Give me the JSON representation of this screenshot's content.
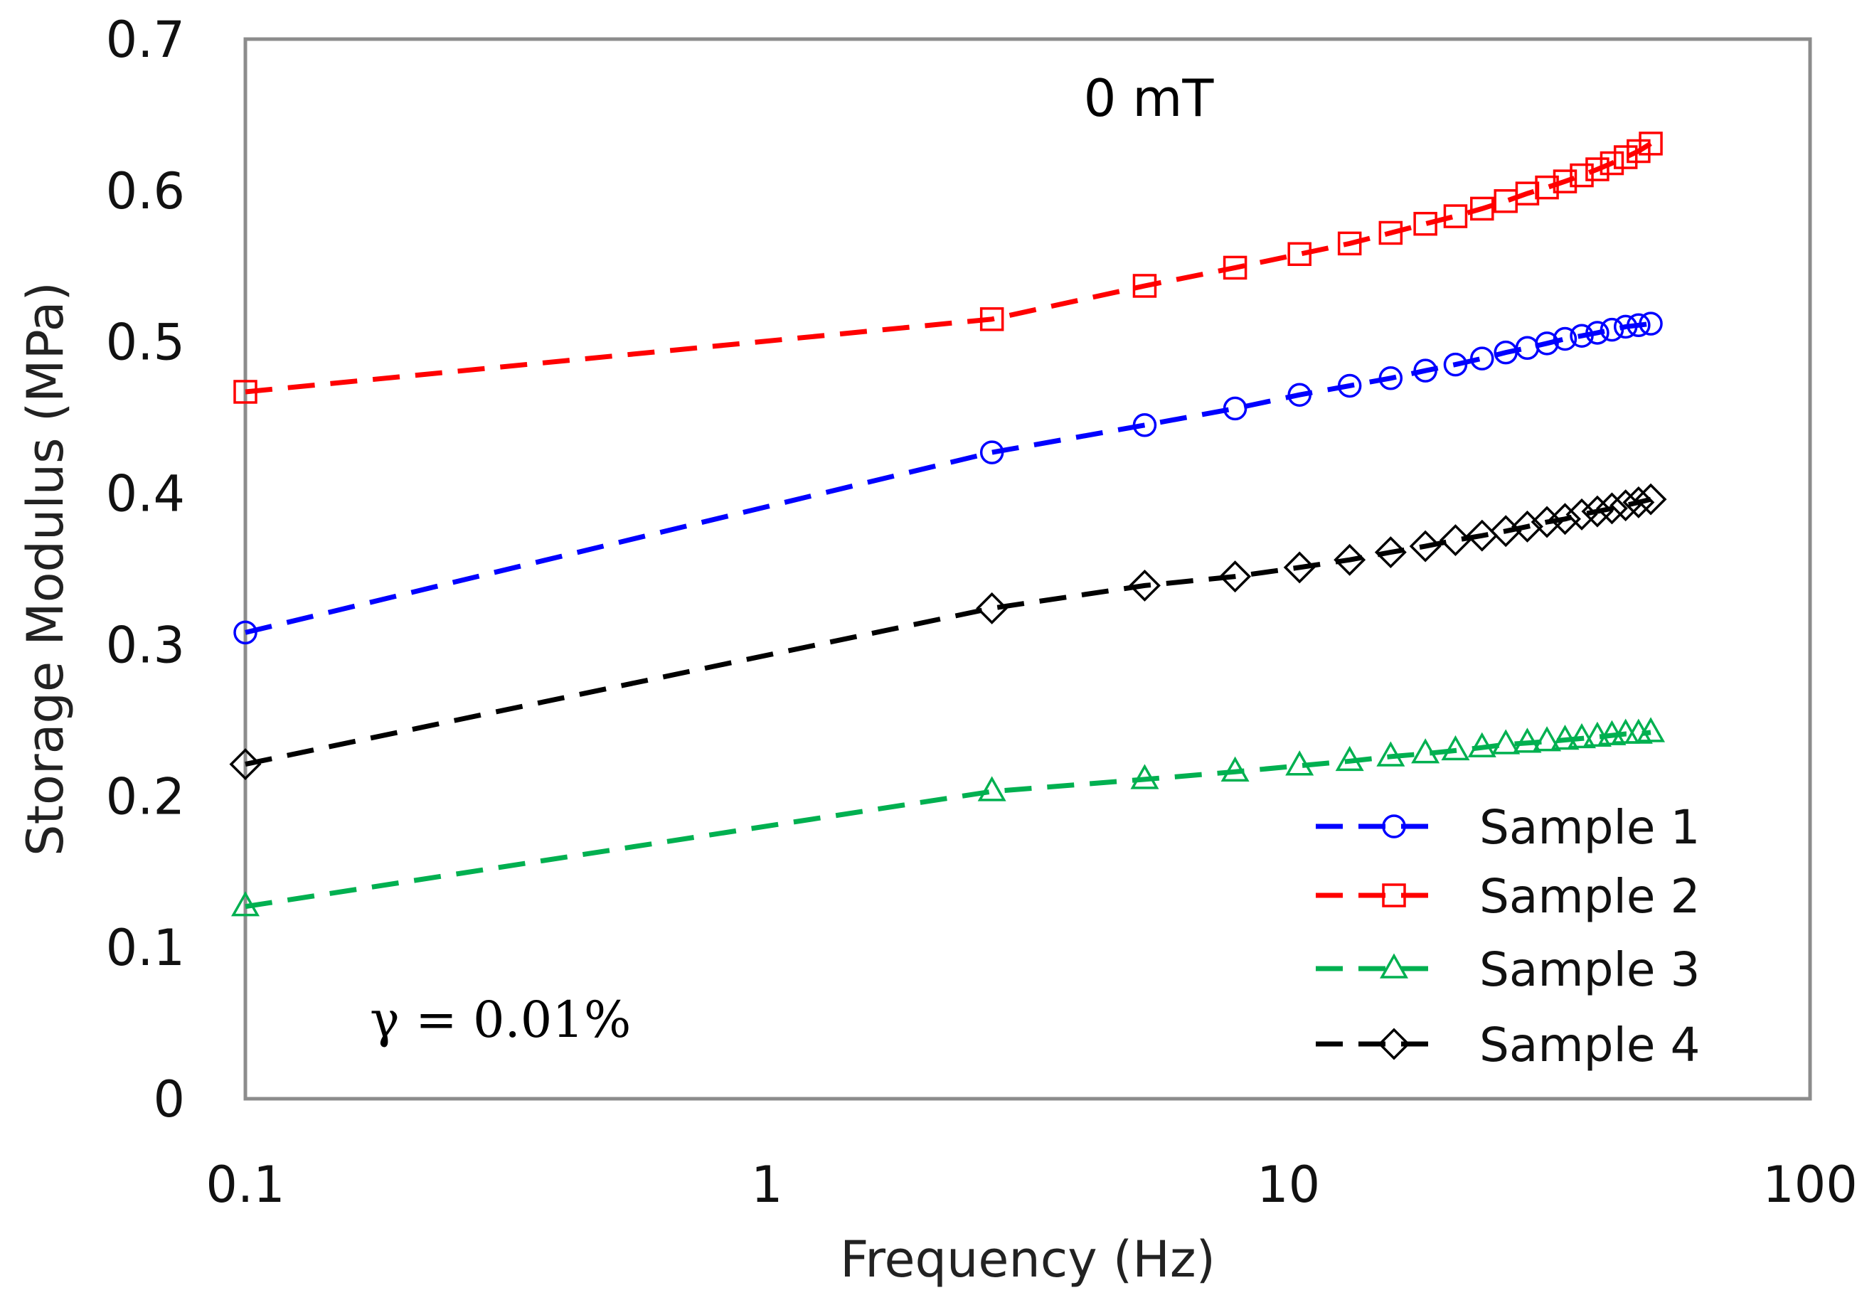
{
  "chart_data": {
    "type": "scatter",
    "title": "0 mT",
    "annotation": "γ = 0.01%",
    "xlabel": "Frequency (Hz)",
    "ylabel": "Storage Modulus (MPa)",
    "xscale": "log",
    "xlim": [
      0.1,
      100
    ],
    "ylim": [
      0,
      0.7
    ],
    "xticks": [
      0.1,
      1,
      10,
      100
    ],
    "xtick_labels": [
      "0.1",
      "1",
      "10",
      "100"
    ],
    "yticks": [
      0,
      0.1,
      0.2,
      0.3,
      0.4,
      0.5,
      0.6,
      0.7
    ],
    "ytick_labels": [
      "0",
      "0.1",
      "0.2",
      "0.3",
      "0.4",
      "0.5",
      "0.6",
      "0.7"
    ],
    "grid": false,
    "legend_position": "bottom-right",
    "line_style": "dashed",
    "x": [
      0.1,
      2.7,
      5.3,
      7.9,
      10.5,
      13.1,
      15.7,
      18.3,
      20.9,
      23.5,
      26.1,
      28.7,
      31.3,
      33.9,
      36.5,
      39.1,
      41.7,
      44.3,
      46.9,
      49.5
    ],
    "series": [
      {
        "name": "Sample 1",
        "color": "#0000ff",
        "marker": "circle",
        "values": [
          0.308,
          0.427,
          0.445,
          0.456,
          0.465,
          0.471,
          0.476,
          0.481,
          0.485,
          0.489,
          0.493,
          0.496,
          0.499,
          0.502,
          0.504,
          0.506,
          0.508,
          0.51,
          0.511,
          0.512
        ]
      },
      {
        "name": "Sample 2",
        "color": "#ff0000",
        "marker": "square",
        "values": [
          0.467,
          0.515,
          0.537,
          0.549,
          0.558,
          0.565,
          0.572,
          0.578,
          0.583,
          0.588,
          0.593,
          0.598,
          0.602,
          0.606,
          0.61,
          0.614,
          0.618,
          0.622,
          0.626,
          0.631
        ]
      },
      {
        "name": "Sample 3",
        "color": "#00b050",
        "marker": "triangle",
        "values": [
          0.127,
          0.203,
          0.211,
          0.216,
          0.22,
          0.223,
          0.226,
          0.228,
          0.23,
          0.232,
          0.234,
          0.235,
          0.236,
          0.237,
          0.238,
          0.239,
          0.24,
          0.241,
          0.241,
          0.242
        ]
      },
      {
        "name": "Sample 4",
        "color": "#000000",
        "marker": "diamond",
        "values": [
          0.221,
          0.324,
          0.339,
          0.345,
          0.351,
          0.356,
          0.361,
          0.365,
          0.369,
          0.372,
          0.375,
          0.378,
          0.381,
          0.383,
          0.386,
          0.388,
          0.39,
          0.392,
          0.394,
          0.396
        ]
      }
    ]
  }
}
